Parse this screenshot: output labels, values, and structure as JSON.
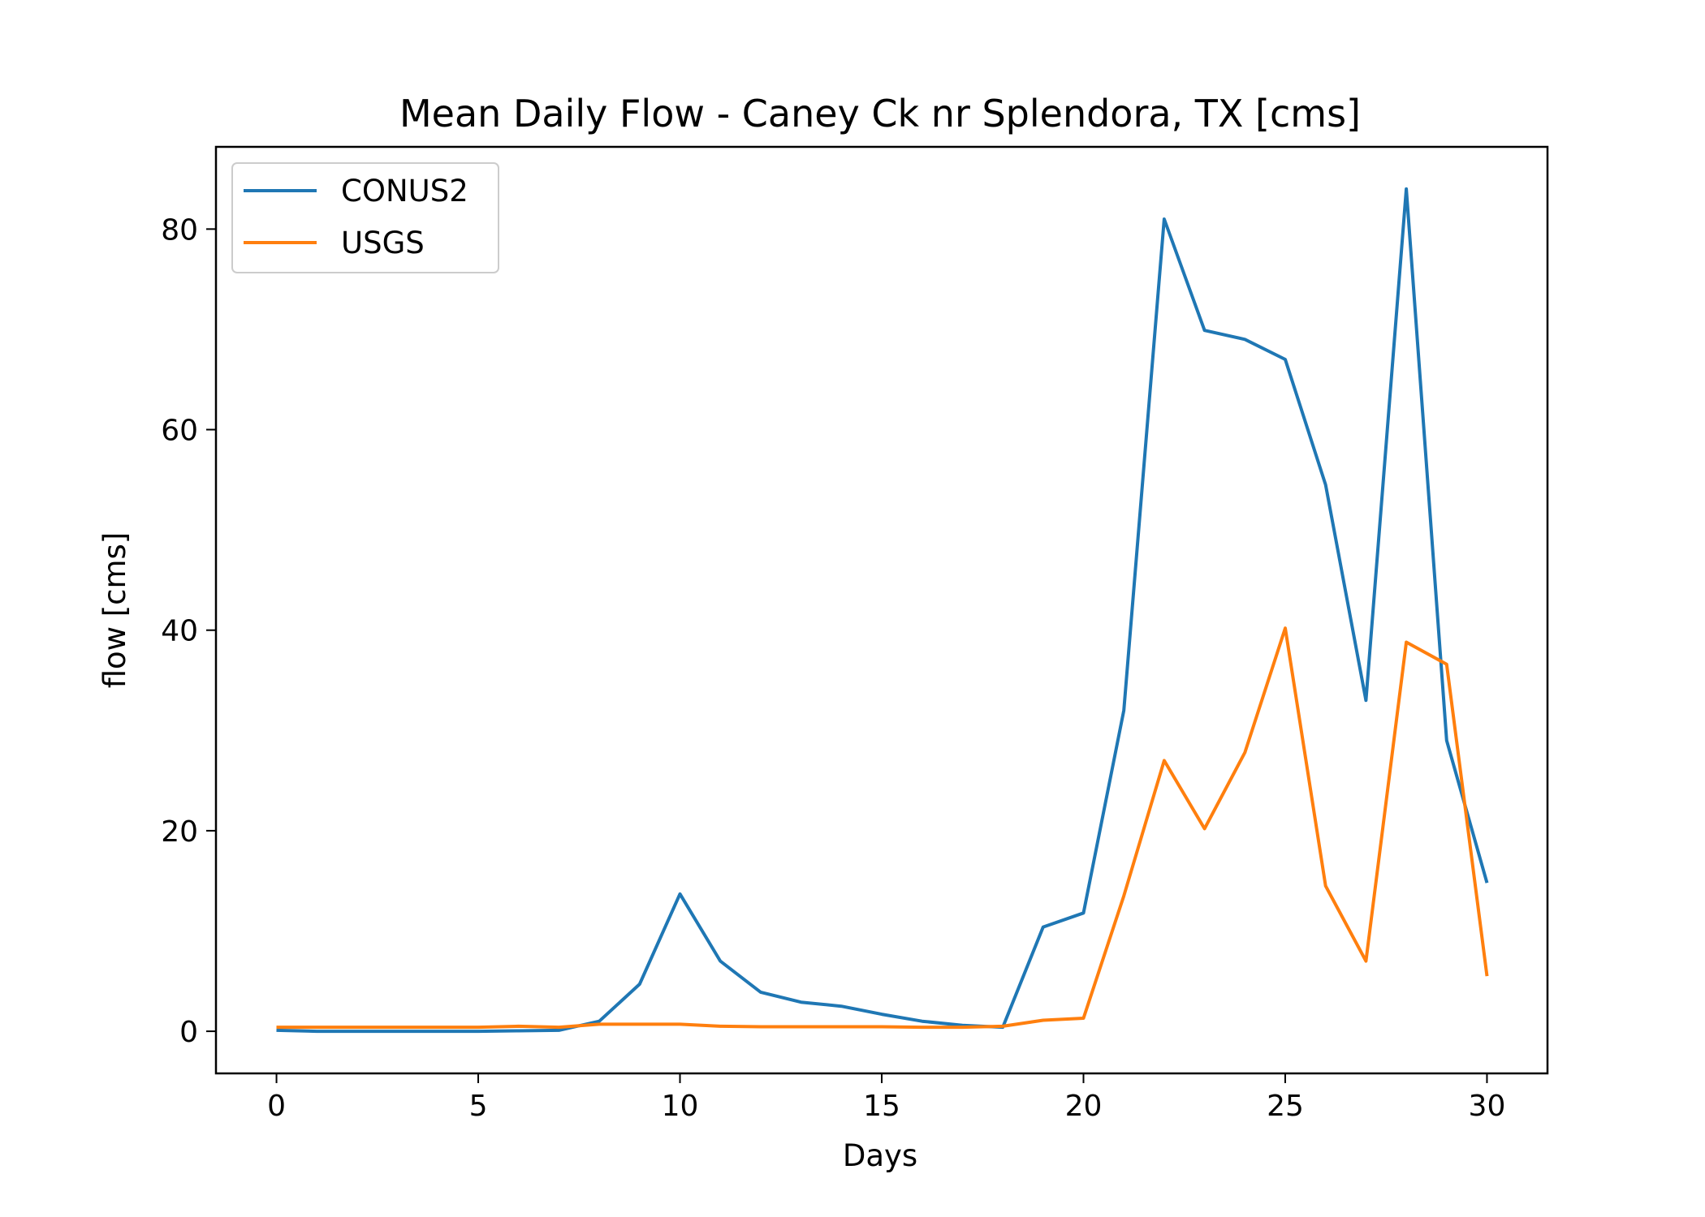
{
  "chart_data": {
    "type": "line",
    "title": "Mean Daily Flow - Caney Ck nr Splendora, TX [cms]",
    "xlabel": "Days",
    "ylabel": "flow [cms]",
    "xlim": [
      -1.5,
      31.5
    ],
    "ylim": [
      -4.2,
      88.2
    ],
    "xticks": [
      0,
      5,
      10,
      15,
      20,
      25,
      30
    ],
    "yticks": [
      0,
      20,
      40,
      60,
      80
    ],
    "grid": false,
    "legend_position": "top-left",
    "x": [
      0,
      1,
      2,
      3,
      4,
      5,
      6,
      7,
      8,
      9,
      10,
      11,
      12,
      13,
      14,
      15,
      16,
      17,
      18,
      19,
      20,
      21,
      22,
      23,
      24,
      25,
      26,
      27,
      28,
      29,
      30
    ],
    "series": [
      {
        "name": "CONUS2",
        "color": "#1f77b4",
        "values": [
          0.1,
          0.0,
          0.0,
          0.0,
          0.0,
          0.0,
          0.05,
          0.1,
          1.0,
          4.7,
          13.7,
          7.0,
          3.9,
          2.9,
          2.5,
          1.7,
          1.0,
          0.6,
          0.4,
          10.4,
          11.8,
          32.0,
          81.0,
          69.9,
          69.0,
          67.0,
          54.5,
          33.0,
          84.0,
          29.0,
          14.8
        ]
      },
      {
        "name": "USGS",
        "color": "#ff7f0e",
        "values": [
          0.4,
          0.4,
          0.4,
          0.4,
          0.4,
          0.4,
          0.5,
          0.4,
          0.7,
          0.7,
          0.7,
          0.5,
          0.45,
          0.45,
          0.45,
          0.45,
          0.4,
          0.4,
          0.5,
          1.1,
          1.3,
          13.5,
          27.0,
          20.2,
          27.8,
          40.2,
          14.5,
          7.0,
          38.8,
          36.6,
          5.5
        ]
      }
    ]
  }
}
